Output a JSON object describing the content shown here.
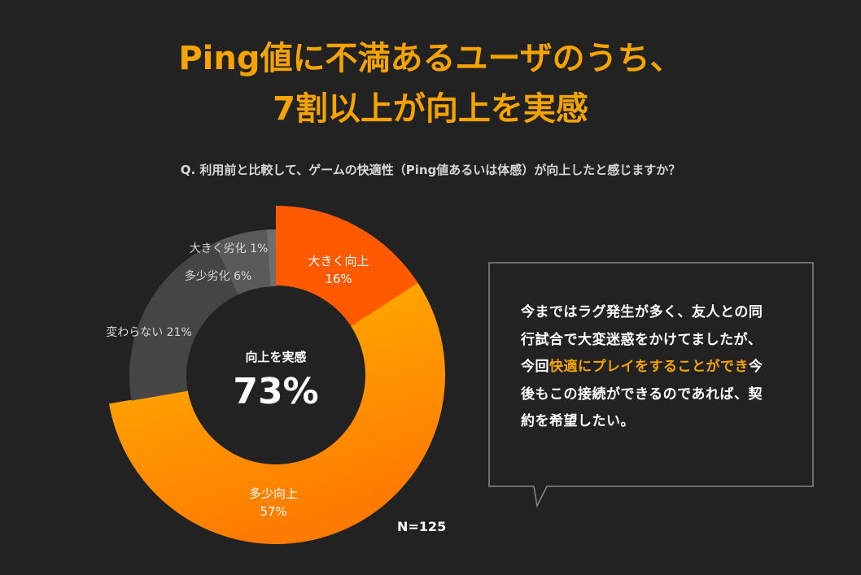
{
  "title": {
    "line1": "Ping値に不満あるユーザのうち、",
    "line2": "7割以上が向上を実感"
  },
  "question": "Q. 利用前と比較して、ゲームの快適性（Ping値あるいは体感）が向上したと感じますか？",
  "chart_data": {
    "type": "pie",
    "style": "donut",
    "unit": "%",
    "slices": [
      {
        "label": "大きく向上",
        "value": 16,
        "color": "#FF5A00"
      },
      {
        "label": "多少向上",
        "value": 57,
        "color": "#FF9A00"
      },
      {
        "label": "変わらない",
        "value": 21,
        "color": "#454545"
      },
      {
        "label": "多少劣化",
        "value": 6,
        "color": "#5a5a5a"
      },
      {
        "label": "大きく劣化",
        "value": 1,
        "color": "#6e6e6e"
      }
    ],
    "center_label": "向上を実感",
    "center_value": "73%",
    "n_label": "N=125"
  },
  "comment": {
    "part1": "今まではラグ発生が多く、友人との同行試合で大変迷惑をかけてましたが、今回",
    "highlight": "快適にプレイをすることができ",
    "part2": "今後もこの接続ができるのであれば、契約を希望したい。"
  },
  "colors": {
    "background": "#222222",
    "accent": "#F5A300",
    "bubble_border": "#888888"
  }
}
